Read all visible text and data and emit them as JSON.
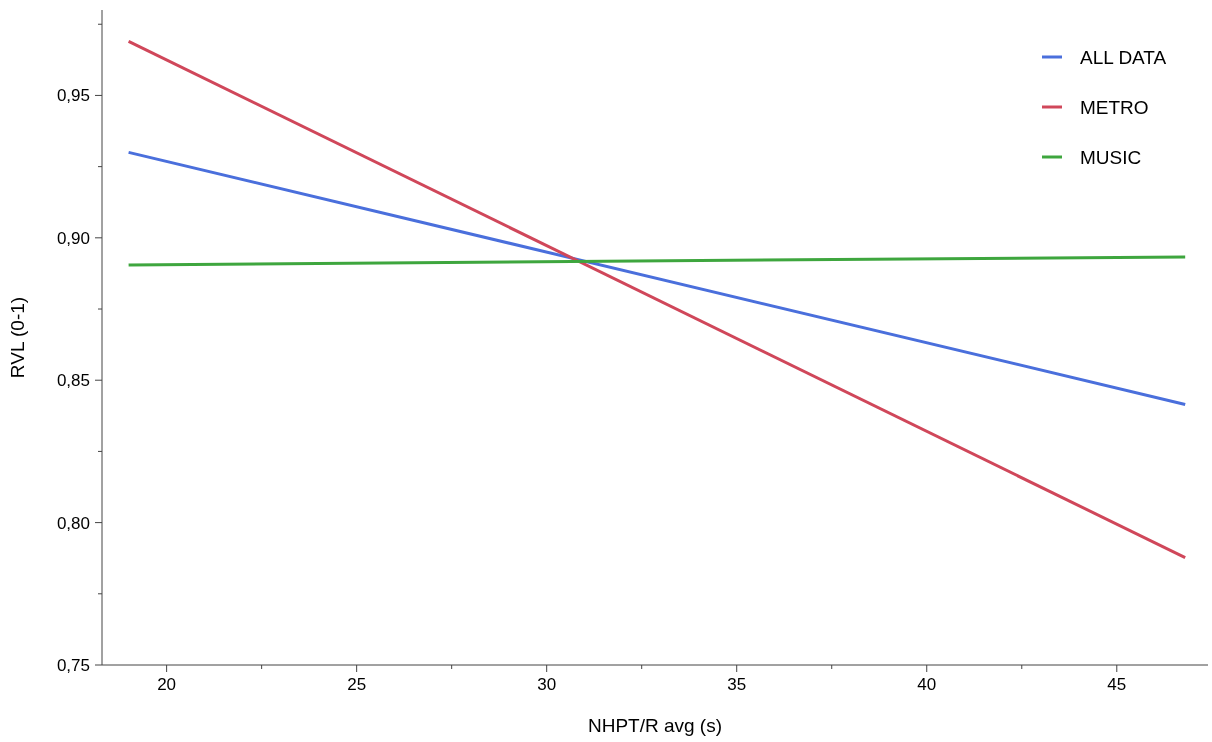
{
  "chart_data": {
    "type": "line",
    "xlabel": "NHPT/R avg (s)",
    "ylabel": "RVL (0-1)",
    "x": [
      19,
      46.8
    ],
    "series": [
      {
        "name": "ALL DATA",
        "color": "#4a6fdc",
        "values": [
          0.93,
          0.8415
        ]
      },
      {
        "name": "METRO",
        "color": "#d0475a",
        "values": [
          0.969,
          0.7877
        ]
      },
      {
        "name": "MUSIC",
        "color": "#3ea63e",
        "values": [
          0.8905,
          0.8933
        ]
      }
    ],
    "xlim": [
      18.3,
      47.4
    ],
    "ylim": [
      0.75,
      0.98
    ],
    "xticks": [
      20,
      {
        "value": 22.5,
        "label": null
      },
      25,
      {
        "value": 27.5,
        "label": null
      },
      30,
      {
        "value": 32.5,
        "label": null
      },
      35,
      {
        "value": 37.5,
        "label": null
      },
      40,
      {
        "value": 42.5,
        "label": null
      },
      45
    ],
    "yticks": [
      {
        "value": 0.75,
        "label": "0,75"
      },
      {
        "value": 0.775,
        "label": null
      },
      {
        "value": 0.8,
        "label": "0,80"
      },
      {
        "value": 0.825,
        "label": null
      },
      {
        "value": 0.85,
        "label": "0,85"
      },
      {
        "value": 0.875,
        "label": null
      },
      {
        "value": 0.9,
        "label": "0,90"
      },
      {
        "value": 0.925,
        "label": null
      },
      {
        "value": 0.95,
        "label": "0,95"
      },
      {
        "value": 0.975,
        "label": null
      }
    ],
    "grid": false,
    "legend": "top right",
    "marker": "none",
    "line_style": "solid"
  }
}
